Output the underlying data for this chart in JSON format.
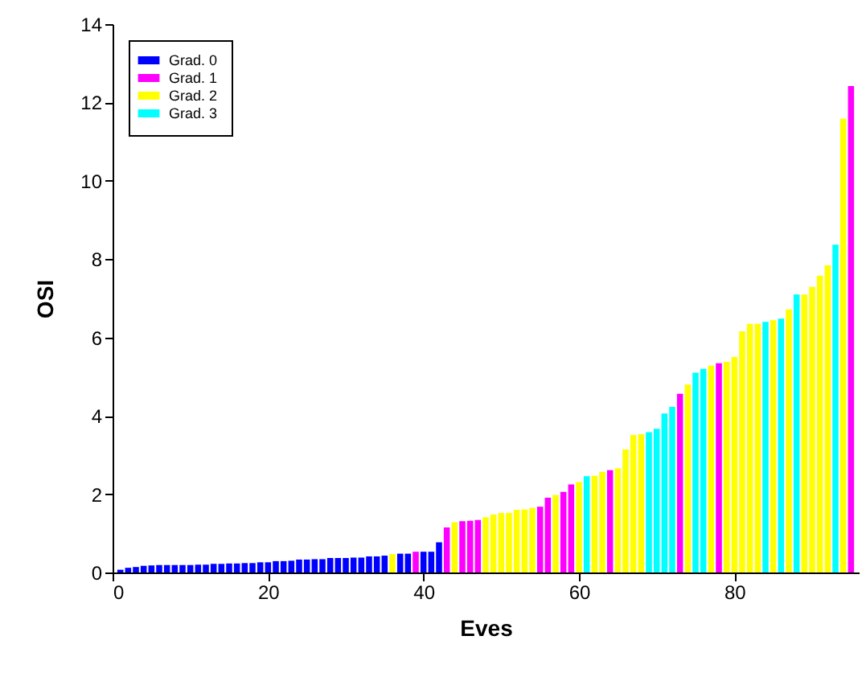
{
  "chart_data": {
    "type": "bar",
    "xlabel": "Eves",
    "ylabel": "OSI",
    "xlim": [
      0,
      96
    ],
    "xticks": [
      0,
      20,
      40,
      60,
      80
    ],
    "ylim": [
      0,
      14
    ],
    "yticks": [
      0,
      2,
      4,
      6,
      8,
      10,
      12,
      14
    ],
    "legend": "top left",
    "series": [
      {
        "name": "Grad. 0",
        "color": "#0000ff",
        "x": [
          1,
          2,
          3,
          4,
          5,
          6,
          7,
          8,
          9,
          10,
          11,
          12,
          13,
          14,
          15,
          16,
          17,
          18,
          19,
          20,
          21,
          22,
          23,
          24,
          25,
          26,
          27,
          28,
          29,
          30,
          31,
          32,
          33,
          34,
          35,
          37,
          38,
          40,
          41,
          42
        ],
        "values": [
          0.07,
          0.12,
          0.14,
          0.17,
          0.18,
          0.19,
          0.19,
          0.19,
          0.19,
          0.19,
          0.2,
          0.2,
          0.22,
          0.22,
          0.23,
          0.23,
          0.24,
          0.24,
          0.26,
          0.26,
          0.29,
          0.29,
          0.3,
          0.33,
          0.33,
          0.34,
          0.34,
          0.37,
          0.37,
          0.37,
          0.38,
          0.38,
          0.41,
          0.41,
          0.43,
          0.48,
          0.48,
          0.53,
          0.53,
          0.77
        ]
      },
      {
        "name": "Grad. 1",
        "color": "#ff00ff",
        "x": [
          39,
          43,
          45,
          46,
          47,
          55,
          56,
          58,
          59,
          64,
          73,
          78,
          95
        ],
        "values": [
          0.53,
          1.15,
          1.31,
          1.32,
          1.34,
          1.68,
          1.91,
          2.06,
          2.25,
          2.61,
          4.56,
          5.34,
          12.42
        ]
      },
      {
        "name": "Grad. 2",
        "color": "#ffff00",
        "x": [
          36,
          44,
          48,
          49,
          50,
          51,
          52,
          53,
          54,
          57,
          60,
          62,
          63,
          65,
          66,
          67,
          68,
          74,
          77,
          79,
          80,
          81,
          82,
          83,
          85,
          87,
          89,
          90,
          91,
          92,
          94
        ],
        "values": [
          0.47,
          1.28,
          1.41,
          1.48,
          1.52,
          1.52,
          1.6,
          1.61,
          1.65,
          1.98,
          2.31,
          2.47,
          2.57,
          2.66,
          3.14,
          3.51,
          3.53,
          4.8,
          5.28,
          5.38,
          5.5,
          6.16,
          6.35,
          6.35,
          6.44,
          6.72,
          7.1,
          7.29,
          7.58,
          7.84,
          11.59
        ]
      },
      {
        "name": "Grad. 3",
        "color": "#00ffff",
        "x": [
          61,
          69,
          70,
          71,
          72,
          75,
          76,
          84,
          86,
          88,
          93
        ],
        "values": [
          2.46,
          3.58,
          3.67,
          4.06,
          4.23,
          5.1,
          5.2,
          6.4,
          6.48,
          7.1,
          8.37
        ]
      }
    ]
  }
}
